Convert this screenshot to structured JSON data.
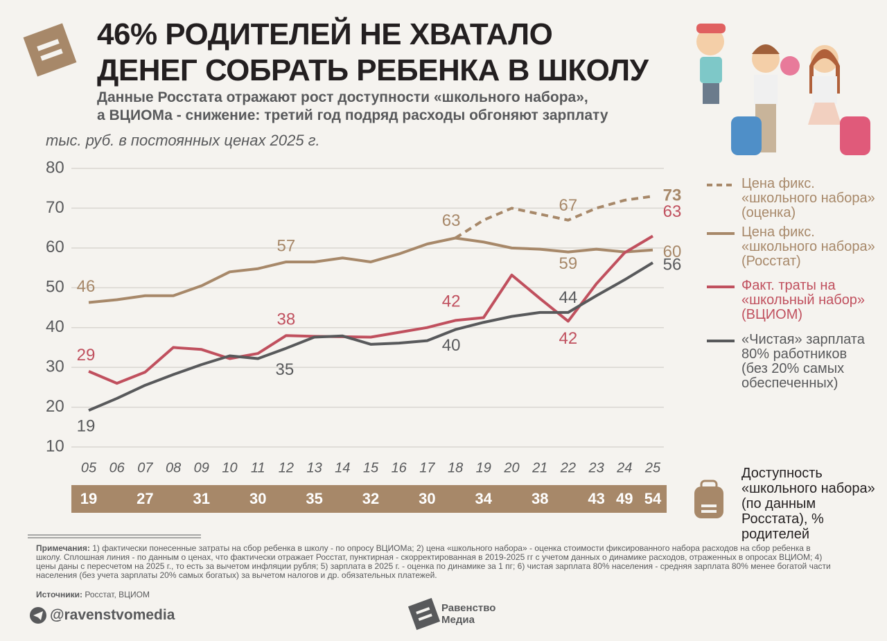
{
  "title_lines": [
    "46% РОДИТЕЛЕЙ НЕ ХВАТАЛО",
    "ДЕНЕГ СОБРАТЬ РЕБЕНКА В ШКОЛУ"
  ],
  "subtitle_lines": [
    "Данные Росстата отражают рост доступности «школьного набора»,",
    "а ВЦИОМа - снижение: третий год подряд расходы обгоняют зарплату"
  ],
  "chart_data": {
    "type": "line",
    "y_label": "тыс. руб. в постоянных ценах 2025 г.",
    "x": [
      "05",
      "06",
      "07",
      "08",
      "09",
      "10",
      "11",
      "12",
      "13",
      "14",
      "15",
      "16",
      "17",
      "18",
      "19",
      "20",
      "21",
      "22",
      "23",
      "24",
      "25"
    ],
    "ylim": [
      10,
      80
    ],
    "yticks": [
      10,
      20,
      30,
      40,
      50,
      60,
      70,
      80
    ],
    "grid": true,
    "series": [
      {
        "name": "Цена фикс. «школьного набора» (оценка)",
        "color": "#a78869",
        "dashed": true,
        "values": [
          null,
          null,
          null,
          null,
          null,
          null,
          null,
          null,
          null,
          null,
          null,
          null,
          null,
          62.5,
          67,
          70,
          68.5,
          67,
          70,
          72,
          73
        ],
        "value_labels": [
          null,
          null,
          null,
          null,
          null,
          null,
          null,
          null,
          null,
          null,
          null,
          null,
          null,
          null,
          null,
          null,
          null,
          "67",
          null,
          null,
          "73"
        ]
      },
      {
        "name": "Цена фикс. «школьного набора» (Росстат)",
        "color": "#a78869",
        "dashed": false,
        "values": [
          46.3,
          47,
          48,
          48,
          50.5,
          54,
          54.8,
          56.5,
          56.5,
          57.5,
          56.5,
          58.5,
          61,
          62.5,
          61.5,
          60,
          59.7,
          59,
          59.7,
          59,
          59.5
        ],
        "value_labels": [
          "46",
          null,
          null,
          null,
          null,
          null,
          null,
          "57",
          null,
          null,
          null,
          null,
          null,
          "63",
          null,
          null,
          null,
          "59",
          null,
          null,
          "60"
        ]
      },
      {
        "name": "Факт. траты на «школьный набор» (ВЦИОМ)",
        "color": "#c0505e",
        "dashed": false,
        "values": [
          29,
          26,
          28.8,
          35,
          34.5,
          32.2,
          33.5,
          38,
          37.8,
          37.7,
          37.6,
          38.8,
          40,
          41.8,
          42.5,
          53.2,
          47.3,
          41.6,
          51,
          58.8,
          63
        ],
        "value_labels": [
          "29",
          null,
          null,
          null,
          null,
          null,
          null,
          "38",
          null,
          null,
          null,
          null,
          null,
          "42",
          null,
          null,
          null,
          "42",
          null,
          null,
          "63"
        ]
      },
      {
        "name": "«Чистая» зарплата 80% работников (без 20% самых обеспеченных)",
        "color": "#58595b",
        "dashed": false,
        "values": [
          19.2,
          22.2,
          25.5,
          28.2,
          30.7,
          32.9,
          32.2,
          34.8,
          37.6,
          37.9,
          35.8,
          36.1,
          36.7,
          39.5,
          41.3,
          42.8,
          43.8,
          43.8,
          48,
          52,
          56.3
        ],
        "value_labels": [
          "19",
          null,
          null,
          null,
          null,
          null,
          null,
          "35",
          null,
          null,
          null,
          null,
          null,
          "40",
          null,
          null,
          null,
          "44",
          null,
          null,
          "56"
        ]
      }
    ],
    "accessibility": {
      "label": "Доступность «школьного набора» (по данным Росстата), % родителей",
      "categories": [
        "05",
        "07",
        "09",
        "11",
        "13",
        "15",
        "17",
        "19",
        "21",
        "23",
        "24",
        "25"
      ],
      "values": [
        19,
        27,
        31,
        30,
        35,
        32,
        30,
        34,
        38,
        43,
        49,
        54
      ]
    }
  },
  "notes_label": "Примечания:",
  "notes": "1) фактически понесенные затраты на сбор ребенка в школу - по опросу ВЦИОМа; 2) цена «школьного набора» - оценка стоимости фиксированного набора расходов на сбор ребенка в школу. Сплошная линия - по данным о ценах, что фактически отражает Росстат, пунктирная - скорректированная в 2019-2025 гг с учетом данных о динамике расходов, отраженных в опросах ВЦИОМ; 4) цены даны с пересчетом на 2025 г., то есть за вычетом инфляции рубля; 5) зарплата в 2025 г. - оценка по динамике за 1 пг; 6) чистая зарплата 80% населения - средняя зарплата 80% менее богатой части населения (без учета зарплаты 20% самых богатых) за вычетом налогов и др. обязательных платежей.",
  "sources_label": "Источники:",
  "sources": "Росстат, ВЦИОМ",
  "handle": "@ravenstvomedia",
  "brand": "Равенство Медиа"
}
